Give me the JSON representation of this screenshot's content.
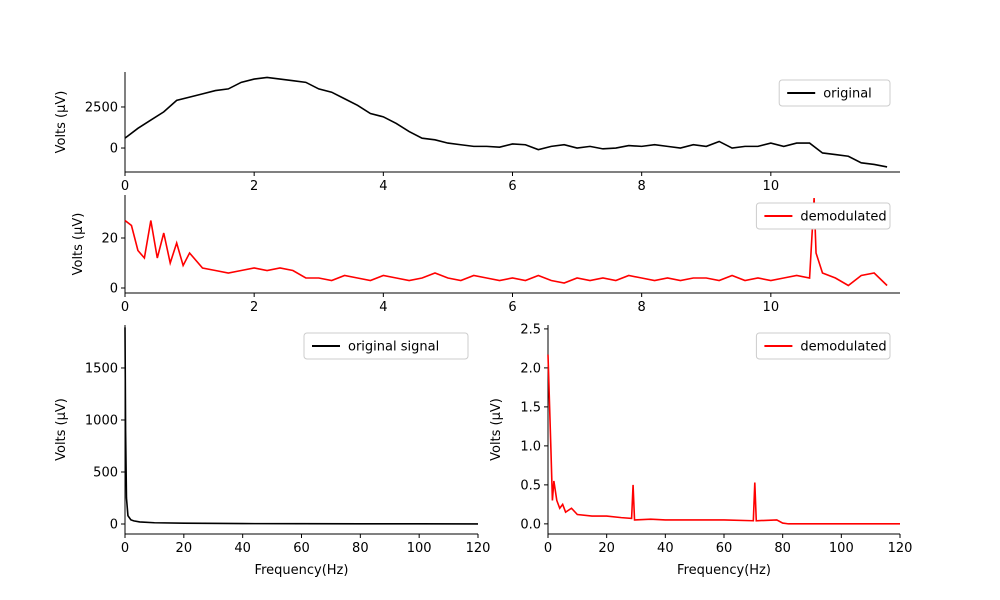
{
  "chart_data": [
    {
      "type": "line",
      "ylabel": "Volts (μV)",
      "legend": "upper right",
      "x": [
        0,
        0.2,
        0.4,
        0.6,
        0.8,
        1.0,
        1.2,
        1.4,
        1.6,
        1.8,
        2.0,
        2.2,
        2.4,
        2.6,
        2.8,
        3.0,
        3.2,
        3.4,
        3.6,
        3.8,
        4.0,
        4.2,
        4.4,
        4.6,
        4.8,
        5.0,
        5.2,
        5.4,
        5.6,
        5.8,
        6.0,
        6.2,
        6.4,
        6.6,
        6.8,
        7.0,
        7.2,
        7.4,
        7.6,
        7.8,
        8.0,
        8.2,
        8.4,
        8.6,
        8.8,
        9.0,
        9.2,
        9.4,
        9.6,
        9.8,
        10.0,
        10.2,
        10.4,
        10.6,
        10.8,
        11.0,
        11.2,
        11.4,
        11.6,
        11.8
      ],
      "series": [
        {
          "name": "original",
          "color": "#000000",
          "values": [
            600,
            1200,
            1700,
            2200,
            2900,
            3100,
            3300,
            3500,
            3600,
            4000,
            4200,
            4300,
            4200,
            4100,
            4000,
            3600,
            3400,
            3000,
            2600,
            2100,
            1900,
            1500,
            1000,
            600,
            500,
            300,
            200,
            100,
            100,
            50,
            250,
            200,
            -100,
            100,
            200,
            0,
            100,
            -50,
            0,
            150,
            100,
            200,
            100,
            0,
            200,
            100,
            400,
            0,
            100,
            100,
            300,
            100,
            300,
            300,
            -300,
            -400,
            -500,
            -900,
            -1000,
            -1150
          ]
        }
      ],
      "xlim": [
        0,
        12
      ],
      "xticks": [
        0,
        2,
        4,
        6,
        8,
        10
      ],
      "ylim": [
        -1460,
        4630
      ],
      "yticks": [
        0,
        2500
      ]
    },
    {
      "type": "line",
      "ylabel": "Volts (μV)",
      "legend": "upper right",
      "x": [
        0,
        0.1,
        0.2,
        0.3,
        0.4,
        0.5,
        0.6,
        0.7,
        0.8,
        0.9,
        1.0,
        1.2,
        1.4,
        1.6,
        1.8,
        2.0,
        2.2,
        2.4,
        2.6,
        2.8,
        3.0,
        3.2,
        3.4,
        3.6,
        3.8,
        4.0,
        4.2,
        4.4,
        4.6,
        4.8,
        5.0,
        5.2,
        5.4,
        5.6,
        5.8,
        6.0,
        6.2,
        6.4,
        6.6,
        6.8,
        7.0,
        7.2,
        7.4,
        7.6,
        7.8,
        8.0,
        8.2,
        8.4,
        8.6,
        8.8,
        9.0,
        9.2,
        9.4,
        9.6,
        9.8,
        10.0,
        10.2,
        10.4,
        10.6,
        10.67,
        10.7,
        10.8,
        11.0,
        11.2,
        11.4,
        11.6,
        11.8
      ],
      "series": [
        {
          "name": "demodulated",
          "color": "#ff0000",
          "values": [
            27,
            25,
            15,
            12,
            27,
            12,
            22,
            10,
            18,
            9,
            14,
            8,
            7,
            6,
            7,
            8,
            7,
            8,
            7,
            4,
            4,
            3,
            5,
            4,
            3,
            5,
            4,
            3,
            4,
            6,
            4,
            3,
            5,
            4,
            3,
            4,
            3,
            5,
            3,
            2,
            4,
            3,
            4,
            3,
            5,
            4,
            3,
            4,
            3,
            4,
            4,
            3,
            5,
            3,
            4,
            3,
            4,
            5,
            4,
            36,
            14,
            6,
            4,
            1,
            5,
            6,
            1
          ]
        }
      ],
      "xlim": [
        0,
        12
      ],
      "xticks": [
        0,
        2,
        4,
        6,
        8,
        10
      ],
      "ylim": [
        -2,
        37.2
      ],
      "yticks": [
        0,
        20
      ]
    },
    {
      "type": "line",
      "xlabel": "Frequency(Hz)",
      "ylabel": "Volts (μV)",
      "legend": "upper right",
      "x": [
        0,
        0.2,
        0.5,
        1,
        2,
        3,
        5,
        10,
        20,
        40,
        60,
        80,
        100,
        120
      ],
      "series": [
        {
          "name": "original signal",
          "color": "#000000",
          "values": [
            1890,
            900,
            250,
            80,
            40,
            30,
            20,
            12,
            8,
            4,
            3,
            2,
            2,
            1
          ]
        }
      ],
      "xlim": [
        0,
        120
      ],
      "xticks": [
        0,
        20,
        40,
        60,
        80,
        100,
        120
      ],
      "ylim": [
        -96,
        1913
      ],
      "yticks": [
        0,
        500,
        1000,
        1500
      ]
    },
    {
      "type": "line",
      "xlabel": "Frequency(Hz)",
      "ylabel": "Volts (μV)",
      "legend": "upper right",
      "x": [
        0,
        1,
        1.5,
        2,
        3,
        4,
        5,
        6,
        8,
        10,
        15,
        20,
        25,
        28.5,
        29,
        29.5,
        35,
        40,
        50,
        60,
        70,
        70.5,
        71,
        78,
        80,
        82,
        120
      ],
      "series": [
        {
          "name": "demodulated",
          "color": "#ff0000",
          "values": [
            2.17,
            0.95,
            0.3,
            0.55,
            0.3,
            0.2,
            0.25,
            0.15,
            0.2,
            0.12,
            0.1,
            0.1,
            0.08,
            0.07,
            0.5,
            0.05,
            0.06,
            0.05,
            0.05,
            0.05,
            0.04,
            0.53,
            0.04,
            0.05,
            0.01,
            0,
            0
          ]
        }
      ],
      "xlim": [
        0,
        120
      ],
      "xticks": [
        0,
        20,
        40,
        60,
        80,
        100,
        120
      ],
      "ylim": [
        -0.13,
        2.55
      ],
      "yticks": [
        {
          "value": 0,
          "label": "0.0"
        },
        0.5,
        {
          "value": 1,
          "label": "1.0"
        },
        1.5,
        {
          "value": 2,
          "label": "2.0"
        },
        2.5
      ]
    }
  ]
}
